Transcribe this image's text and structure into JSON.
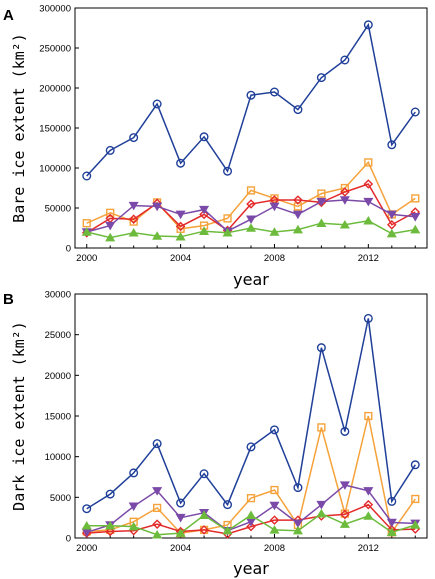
{
  "chart_data": [
    {
      "type": "line",
      "panel_label": "A",
      "title": "",
      "xlabel": "year",
      "ylabel": "Bare ice extent (km²)",
      "xlim": [
        1999.5,
        2014.5
      ],
      "ylim": [
        0,
        300000
      ],
      "xticks": [
        2000,
        2004,
        2008,
        2012
      ],
      "yticks": [
        0,
        50000,
        100000,
        150000,
        200000,
        250000,
        300000
      ],
      "ytick_labels": [
        "0",
        "50000",
        "100000",
        "150000",
        "200000",
        "250000",
        "300000"
      ],
      "grid": false,
      "x": [
        2000,
        2001,
        2002,
        2003,
        2004,
        2005,
        2006,
        2007,
        2008,
        2009,
        2010,
        2011,
        2012,
        2013,
        2014
      ],
      "series": [
        {
          "color": "#1f3f99",
          "marker": "circle",
          "values": [
            90000,
            122000,
            138000,
            180000,
            106000,
            139000,
            96000,
            191000,
            195000,
            173000,
            213000,
            235000,
            279000,
            129000,
            170000
          ]
        },
        {
          "color": "#f5a23a",
          "marker": "square",
          "values": [
            31000,
            44000,
            33000,
            57000,
            24000,
            28000,
            37000,
            72000,
            62000,
            52000,
            68000,
            75000,
            107000,
            42000,
            62000
          ]
        },
        {
          "color": "#e32a2a",
          "marker": "diamond",
          "values": [
            19000,
            37000,
            36000,
            56000,
            27000,
            42000,
            22000,
            55000,
            60000,
            60000,
            57000,
            70000,
            80000,
            29000,
            45000
          ]
        },
        {
          "color": "#7b4aa8",
          "marker": "triangle-down",
          "values": [
            20000,
            28000,
            53000,
            52000,
            42000,
            48000,
            21000,
            36000,
            52000,
            42000,
            58000,
            60000,
            58000,
            42000,
            39000
          ]
        },
        {
          "color": "#6cbb3c",
          "marker": "triangle-up",
          "values": [
            20000,
            13000,
            19000,
            15000,
            14000,
            21000,
            19000,
            25000,
            20000,
            23000,
            31000,
            29000,
            34000,
            18000,
            23000
          ]
        }
      ]
    },
    {
      "type": "line",
      "panel_label": "B",
      "title": "",
      "xlabel": "year",
      "ylabel": "Dark ice extent (km²)",
      "xlim": [
        1999.5,
        2014.5
      ],
      "ylim": [
        0,
        30000
      ],
      "xticks": [
        2000,
        2004,
        2008,
        2012
      ],
      "yticks": [
        0,
        5000,
        10000,
        15000,
        20000,
        25000,
        30000
      ],
      "ytick_labels": [
        "0",
        "5000",
        "10000",
        "15000",
        "20000",
        "25000",
        "30000"
      ],
      "grid": false,
      "x": [
        2000,
        2001,
        2002,
        2003,
        2004,
        2005,
        2006,
        2007,
        2008,
        2009,
        2010,
        2011,
        2012,
        2013,
        2014
      ],
      "series": [
        {
          "color": "#1f3f99",
          "marker": "circle",
          "values": [
            3600,
            5400,
            8000,
            11600,
            4300,
            7900,
            4100,
            11200,
            13300,
            6200,
            23400,
            13100,
            27000,
            4500,
            9000
          ]
        },
        {
          "color": "#f5a23a",
          "marker": "square",
          "values": [
            800,
            1000,
            2000,
            3700,
            600,
            1000,
            1600,
            4900,
            5900,
            1600,
            13600,
            3000,
            15000,
            700,
            4800
          ]
        },
        {
          "color": "#e32a2a",
          "marker": "diamond",
          "values": [
            600,
            800,
            900,
            1700,
            800,
            1000,
            500,
            1400,
            2200,
            2200,
            2700,
            2900,
            4100,
            1000,
            1100
          ]
        },
        {
          "color": "#7b4aa8",
          "marker": "triangle-down",
          "values": [
            700,
            1600,
            3900,
            5800,
            2500,
            3100,
            900,
            2000,
            4000,
            1800,
            4100,
            6500,
            5800,
            1900,
            1800
          ]
        },
        {
          "color": "#6cbb3c",
          "marker": "triangle-up",
          "values": [
            1500,
            1500,
            1400,
            400,
            600,
            2800,
            900,
            2800,
            1000,
            900,
            3000,
            1700,
            2700,
            700,
            1600
          ]
        }
      ]
    }
  ]
}
